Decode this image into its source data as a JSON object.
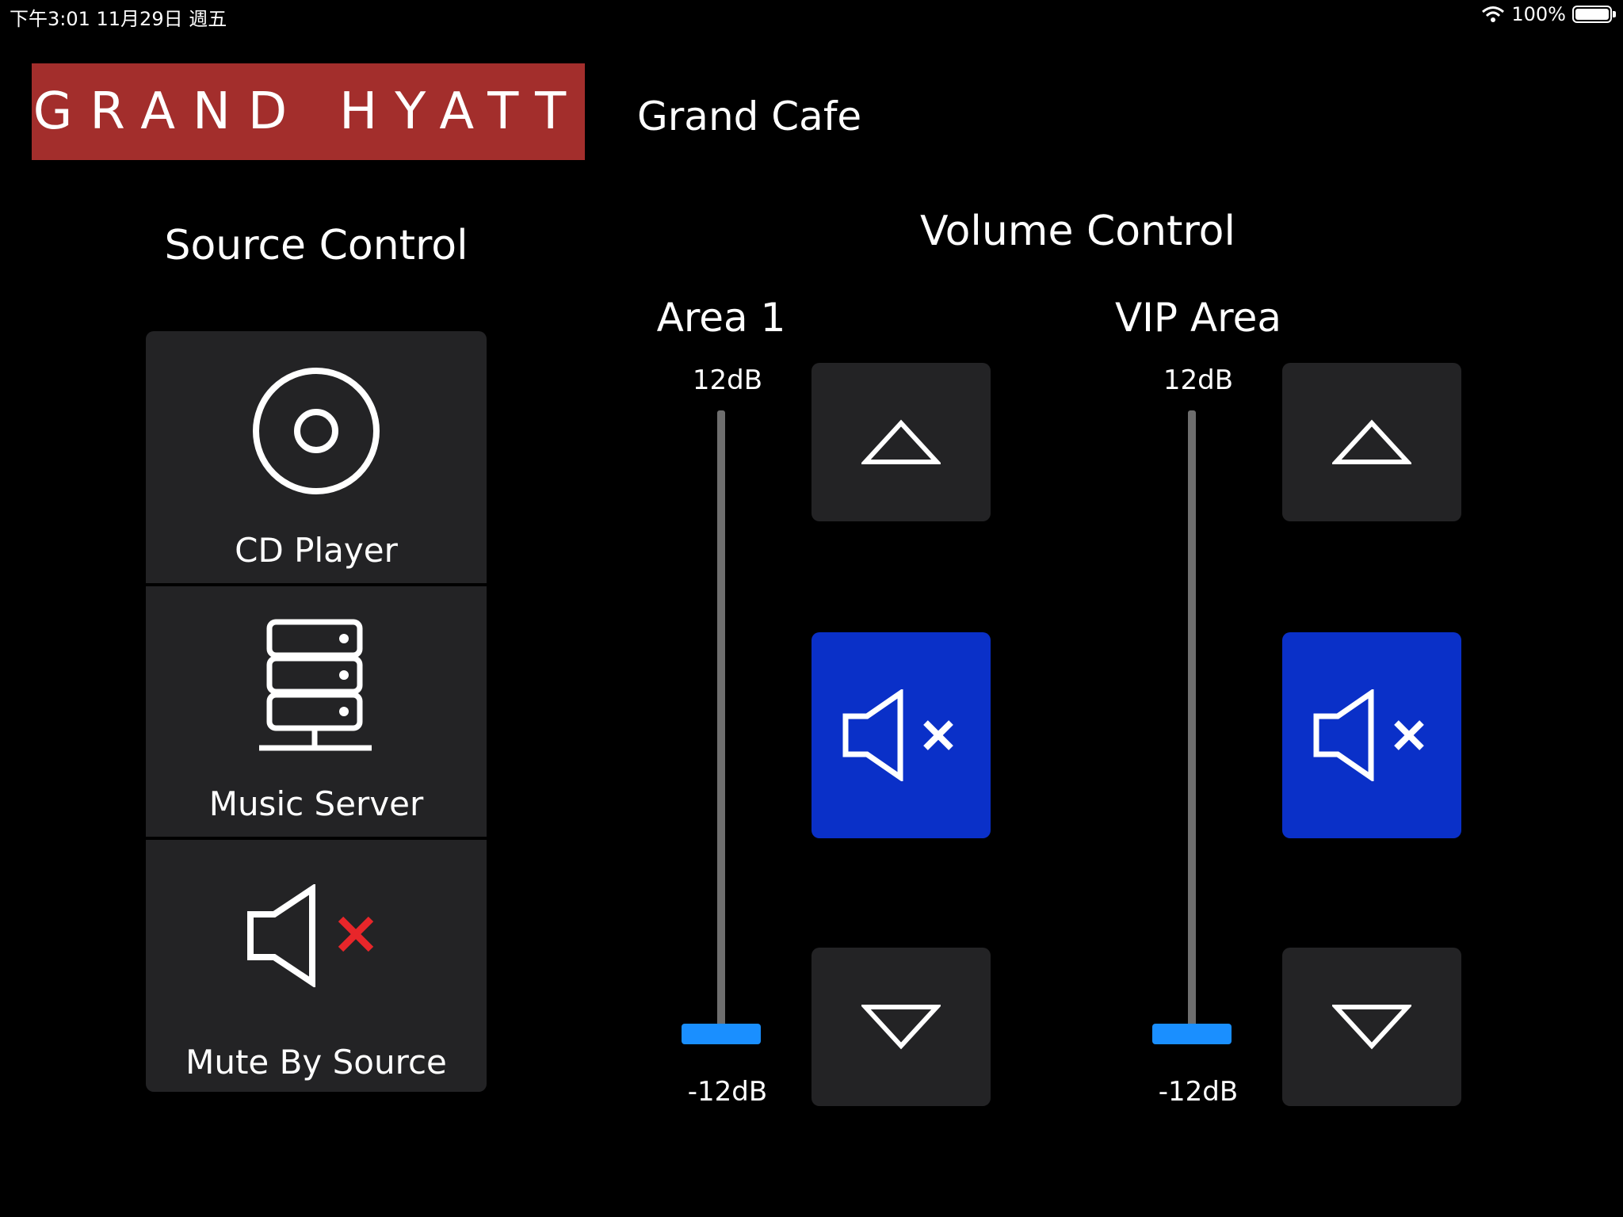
{
  "status_bar": {
    "time_date": "下午3:01  11月29日 週五",
    "battery_percent_text": "100%",
    "battery_level": 1.0
  },
  "logo": {
    "left_word": "GRAND",
    "right_word": "HYATT"
  },
  "header": {
    "venue": "Grand Cafe"
  },
  "source_control": {
    "title": "Source Control",
    "items": [
      {
        "label": "CD Player",
        "icon": "cd-icon"
      },
      {
        "label": "Music Server",
        "icon": "server-icon"
      },
      {
        "label": "Mute By Source",
        "icon": "speaker-mute-icon"
      }
    ]
  },
  "volume_control": {
    "title": "Volume Control",
    "areas": [
      {
        "name": "Area 1",
        "max_label": "12dB",
        "min_label": "-12dB",
        "level": 0.0
      },
      {
        "name": "VIP Area",
        "max_label": "12dB",
        "min_label": "-12dB",
        "level": 0.0
      }
    ]
  },
  "colors": {
    "logo_red": "#a32e2c",
    "mute_blue": "#0a30c8",
    "slider_blue": "#1a8fff",
    "button_gray": "#232325",
    "mute_x_red": "#e8262a"
  }
}
